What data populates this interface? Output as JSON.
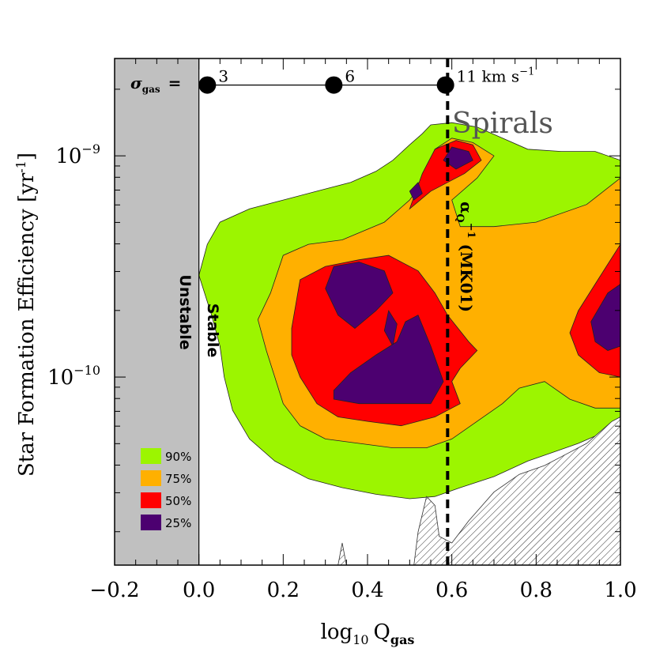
{
  "chart_data": {
    "type": "contour",
    "xlabel_main": "log",
    "xlabel_sub": "10",
    "xlabel_var": "Q",
    "xlabel_var_sub": "gas",
    "ylabel": "Star Formation Efficiency [yr",
    "ylabel_exp": "-1",
    "ylabel_close": "]",
    "xlim": [
      -0.2,
      1.0
    ],
    "ylim_log10": [
      -10.85,
      -8.56
    ],
    "x_ticks": [
      {
        "value": -0.2,
        "label": "−0.2"
      },
      {
        "value": 0.0,
        "label": "0.0"
      },
      {
        "value": 0.2,
        "label": "0.2"
      },
      {
        "value": 0.4,
        "label": "0.4"
      },
      {
        "value": 0.6,
        "label": "0.6"
      },
      {
        "value": 0.8,
        "label": "0.8"
      },
      {
        "value": 1.0,
        "label": "1.0"
      }
    ],
    "y_ticks": [
      {
        "log_value": -9,
        "base": "10",
        "exp": "−9"
      },
      {
        "log_value": -10,
        "base": "10",
        "exp": "−10"
      }
    ],
    "unstable_region": {
      "x_from": -0.2,
      "x_to": 0.0,
      "label": "Unstable"
    },
    "stable_label": "Stable",
    "sigma_gas": {
      "prefix": "σ",
      "prefix_sub": "gas",
      "equals": "=",
      "points": [
        {
          "x": 0.02,
          "label": "3"
        },
        {
          "x": 0.32,
          "label": "6"
        },
        {
          "x": 0.585,
          "label": "11 km s"
        }
      ],
      "unit_exp": "−1",
      "log_y": -8.68
    },
    "critical_line": {
      "x": 0.59,
      "label": "α",
      "label_sub": "Q",
      "label_sup": "−1",
      "label_rest": " (MK01)"
    },
    "annotation": "Spirals",
    "legend": [
      {
        "label": "90%",
        "color": "#9cf500"
      },
      {
        "label": "75%",
        "color": "#ffb000"
      },
      {
        "label": "50%",
        "color": "#ff0000"
      },
      {
        "label": "25%",
        "color": "#4c0070"
      }
    ],
    "contours": [
      {
        "level": "90%",
        "color": "#9cf500",
        "points": [
          [
            0.0,
            -9.54
          ],
          [
            0.02,
            -9.4
          ],
          [
            0.05,
            -9.3
          ],
          [
            0.12,
            -9.24
          ],
          [
            0.2,
            -9.2
          ],
          [
            0.28,
            -9.16
          ],
          [
            0.36,
            -9.12
          ],
          [
            0.42,
            -9.07
          ],
          [
            0.46,
            -9.02
          ],
          [
            0.5,
            -8.95
          ],
          [
            0.53,
            -8.9
          ],
          [
            0.55,
            -8.86
          ],
          [
            0.6,
            -8.85
          ],
          [
            0.66,
            -8.87
          ],
          [
            0.72,
            -8.92
          ],
          [
            0.78,
            -8.97
          ],
          [
            0.86,
            -8.98
          ],
          [
            0.94,
            -8.98
          ],
          [
            1.0,
            -9.02
          ],
          [
            1.0,
            -10.18
          ],
          [
            0.96,
            -10.25
          ],
          [
            0.9,
            -10.3
          ],
          [
            0.84,
            -10.34
          ],
          [
            0.78,
            -10.38
          ],
          [
            0.7,
            -10.45
          ],
          [
            0.62,
            -10.5
          ],
          [
            0.56,
            -10.54
          ],
          [
            0.5,
            -10.55
          ],
          [
            0.42,
            -10.53
          ],
          [
            0.34,
            -10.5
          ],
          [
            0.26,
            -10.46
          ],
          [
            0.18,
            -10.38
          ],
          [
            0.12,
            -10.28
          ],
          [
            0.08,
            -10.15
          ],
          [
            0.06,
            -10.0
          ],
          [
            0.05,
            -9.86
          ],
          [
            0.03,
            -9.72
          ]
        ]
      },
      {
        "level": "75%",
        "color": "#ffb000",
        "points": [
          [
            0.14,
            -9.74
          ],
          [
            0.17,
            -9.62
          ],
          [
            0.2,
            -9.45
          ],
          [
            0.26,
            -9.4
          ],
          [
            0.34,
            -9.38
          ],
          [
            0.44,
            -9.3
          ],
          [
            0.5,
            -9.2
          ],
          [
            0.53,
            -9.12
          ],
          [
            0.56,
            -8.97
          ],
          [
            0.6,
            -8.92
          ],
          [
            0.65,
            -8.94
          ],
          [
            0.7,
            -9.0
          ],
          [
            0.66,
            -9.1
          ],
          [
            0.6,
            -9.2
          ],
          [
            0.62,
            -9.32
          ],
          [
            0.7,
            -9.32
          ],
          [
            0.8,
            -9.3
          ],
          [
            0.92,
            -9.22
          ],
          [
            1.0,
            -9.1
          ],
          [
            1.0,
            -10.14
          ],
          [
            0.94,
            -10.14
          ],
          [
            0.88,
            -10.1
          ],
          [
            0.82,
            -10.02
          ],
          [
            0.76,
            -10.05
          ],
          [
            0.72,
            -10.12
          ],
          [
            0.66,
            -10.2
          ],
          [
            0.6,
            -10.28
          ],
          [
            0.54,
            -10.32
          ],
          [
            0.46,
            -10.32
          ],
          [
            0.38,
            -10.3
          ],
          [
            0.3,
            -10.28
          ],
          [
            0.24,
            -10.22
          ],
          [
            0.2,
            -10.12
          ],
          [
            0.18,
            -10.0
          ],
          [
            0.16,
            -9.88
          ]
        ]
      },
      {
        "level": "50%",
        "color": "#ff0000",
        "points": [
          [
            0.22,
            -9.78
          ],
          [
            0.24,
            -9.56
          ],
          [
            0.3,
            -9.5
          ],
          [
            0.38,
            -9.47
          ],
          [
            0.45,
            -9.45
          ],
          [
            0.52,
            -9.52
          ],
          [
            0.56,
            -9.62
          ],
          [
            0.59,
            -9.72
          ],
          [
            0.64,
            -9.84
          ],
          [
            0.66,
            -9.88
          ],
          [
            0.62,
            -9.96
          ],
          [
            0.6,
            -10.02
          ],
          [
            0.62,
            -10.12
          ],
          [
            0.56,
            -10.18
          ],
          [
            0.48,
            -10.22
          ],
          [
            0.4,
            -10.2
          ],
          [
            0.33,
            -10.18
          ],
          [
            0.28,
            -10.12
          ],
          [
            0.24,
            -10.0
          ],
          [
            0.22,
            -9.9
          ]
        ]
      },
      {
        "level": "50%",
        "color": "#ff0000",
        "points": [
          [
            0.5,
            -9.24
          ],
          [
            0.53,
            -9.08
          ],
          [
            0.56,
            -8.97
          ],
          [
            0.61,
            -8.93
          ],
          [
            0.65,
            -8.95
          ],
          [
            0.67,
            -9.02
          ],
          [
            0.63,
            -9.08
          ],
          [
            0.59,
            -9.12
          ],
          [
            0.55,
            -9.16
          ]
        ]
      },
      {
        "level": "50%",
        "color": "#ff0000",
        "points": [
          [
            0.9,
            -9.7
          ],
          [
            0.95,
            -9.55
          ],
          [
            1.0,
            -9.4
          ],
          [
            1.0,
            -10.0
          ],
          [
            0.95,
            -9.98
          ],
          [
            0.9,
            -9.9
          ],
          [
            0.88,
            -9.8
          ]
        ]
      },
      {
        "level": "25%",
        "color": "#4c0070",
        "points": [
          [
            0.3,
            -9.6
          ],
          [
            0.32,
            -9.5
          ],
          [
            0.38,
            -9.48
          ],
          [
            0.44,
            -9.52
          ],
          [
            0.46,
            -9.62
          ],
          [
            0.42,
            -9.7
          ],
          [
            0.37,
            -9.78
          ],
          [
            0.33,
            -9.72
          ]
        ]
      },
      {
        "level": "25%",
        "color": "#4c0070",
        "points": [
          [
            0.44,
            -9.79
          ],
          [
            0.45,
            -9.7
          ],
          [
            0.47,
            -9.76
          ],
          [
            0.46,
            -9.86
          ]
        ]
      },
      {
        "level": "25%",
        "color": "#4c0070",
        "points": [
          [
            0.32,
            -10.06
          ],
          [
            0.36,
            -9.98
          ],
          [
            0.42,
            -9.9
          ],
          [
            0.47,
            -9.84
          ],
          [
            0.49,
            -9.75
          ],
          [
            0.52,
            -9.72
          ],
          [
            0.55,
            -9.86
          ],
          [
            0.58,
            -10.02
          ],
          [
            0.55,
            -10.12
          ],
          [
            0.47,
            -10.12
          ],
          [
            0.38,
            -10.12
          ],
          [
            0.32,
            -10.1
          ]
        ]
      },
      {
        "level": "25%",
        "color": "#4c0070",
        "points": [
          [
            0.58,
            -9.02
          ],
          [
            0.6,
            -8.96
          ],
          [
            0.64,
            -8.98
          ],
          [
            0.65,
            -9.02
          ],
          [
            0.61,
            -9.06
          ]
        ]
      },
      {
        "level": "25%",
        "color": "#4c0070",
        "points": [
          [
            0.5,
            -9.16
          ],
          [
            0.52,
            -9.12
          ],
          [
            0.53,
            -9.17
          ],
          [
            0.51,
            -9.2
          ]
        ]
      },
      {
        "level": "25%",
        "color": "#4c0070",
        "points": [
          [
            0.93,
            -9.75
          ],
          [
            0.97,
            -9.62
          ],
          [
            1.0,
            -9.58
          ],
          [
            1.0,
            -9.86
          ],
          [
            0.97,
            -9.88
          ],
          [
            0.94,
            -9.84
          ]
        ]
      }
    ],
    "excluded_regions": [
      {
        "points": [
          [
            0.51,
            -10.85
          ],
          [
            0.52,
            -10.7
          ],
          [
            0.54,
            -10.54
          ],
          [
            0.56,
            -10.58
          ],
          [
            0.57,
            -10.72
          ],
          [
            0.6,
            -10.75
          ],
          [
            0.64,
            -10.65
          ],
          [
            0.7,
            -10.52
          ],
          [
            0.76,
            -10.44
          ],
          [
            0.82,
            -10.4
          ],
          [
            0.86,
            -10.36
          ],
          [
            0.92,
            -10.3
          ],
          [
            0.98,
            -10.2
          ],
          [
            1.0,
            -10.18
          ],
          [
            1.0,
            -10.85
          ]
        ]
      },
      {
        "points": [
          [
            0.33,
            -10.85
          ],
          [
            0.34,
            -10.75
          ],
          [
            0.35,
            -10.85
          ]
        ]
      }
    ]
  }
}
